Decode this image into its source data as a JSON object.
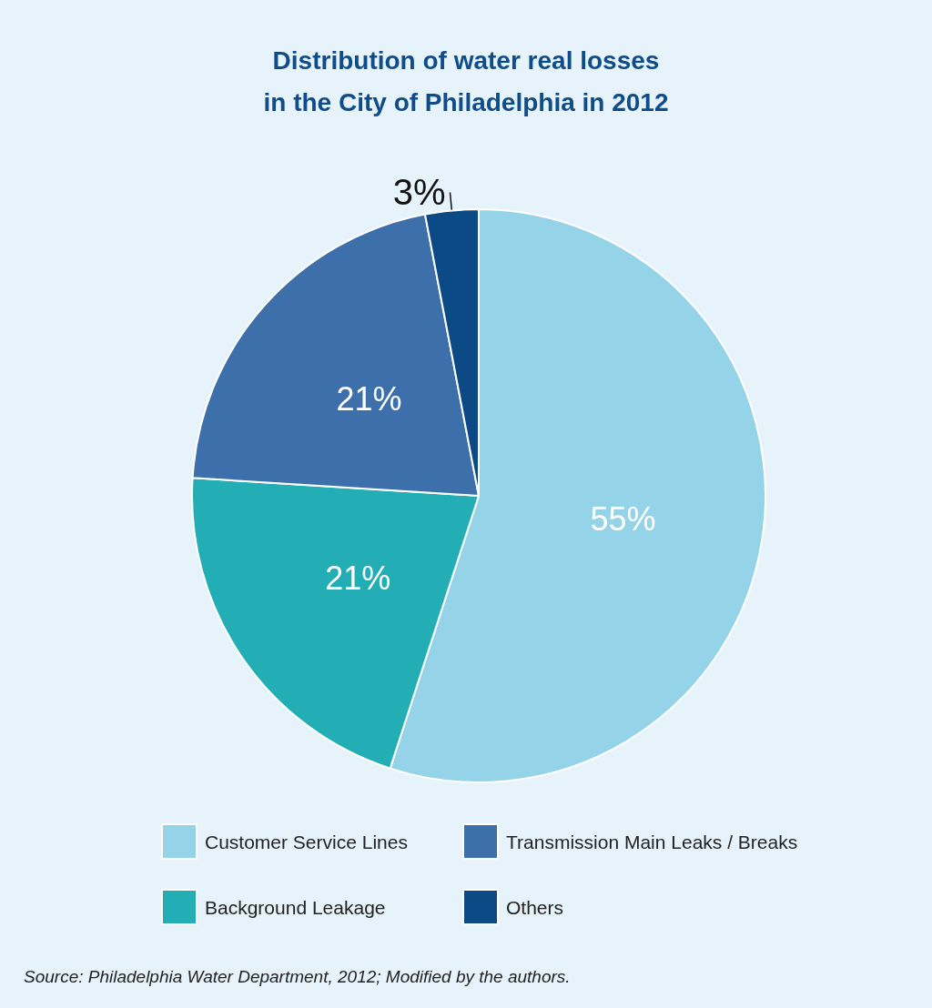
{
  "chart_data": {
    "type": "pie",
    "title": "Distribution of water real losses\nin the City of Philadelphia in 2012",
    "categories": [
      "Customer Service Lines",
      "Background Leakage",
      "Transmission Main Leaks / Breaks",
      "Others"
    ],
    "values": [
      55,
      21,
      21,
      3
    ],
    "colors": [
      "#94d3e8",
      "#23aeb5",
      "#3d6faa",
      "#0c4a86"
    ],
    "value_labels": [
      "55%",
      "21%",
      "21%",
      "3%"
    ],
    "legend": "bottom",
    "annotations": [
      "Source: Philadelphia Water Department, 2012; Modified by the authors."
    ]
  }
}
